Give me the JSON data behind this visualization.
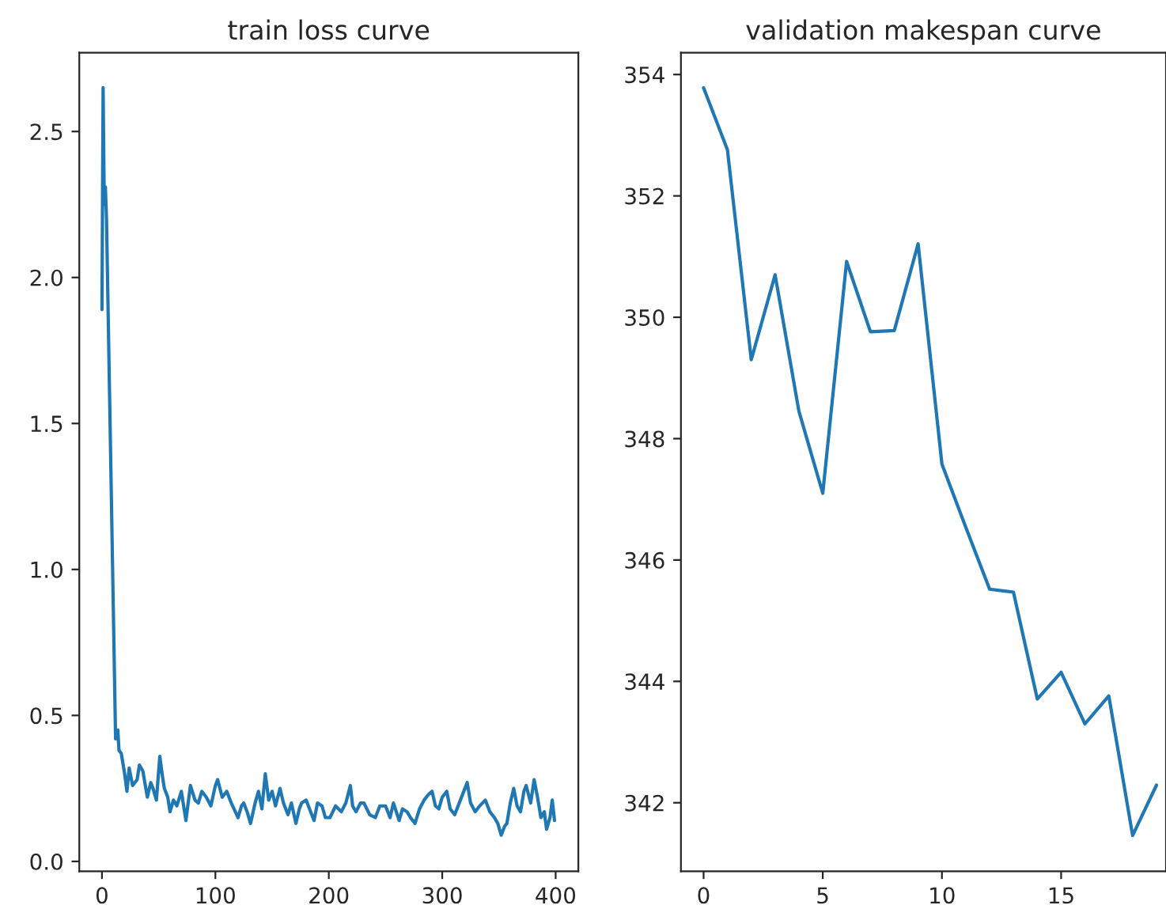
{
  "chart_data": [
    {
      "type": "line",
      "title": "train loss curve",
      "xlim": [
        -20,
        420
      ],
      "ylim": [
        -0.034,
        2.77
      ],
      "xticks": [
        0,
        100,
        200,
        300,
        400
      ],
      "yticks": [
        {
          "value": 0,
          "label": "0.0"
        },
        0.5,
        {
          "value": 1,
          "label": "1.0"
        },
        1.5,
        {
          "value": 2,
          "label": "2.0"
        },
        2.5
      ],
      "grid": false,
      "series": [
        {
          "color": "#1f77b4",
          "x": [
            0,
            1,
            2,
            3,
            4,
            12,
            14,
            15,
            17,
            20,
            22,
            24,
            27,
            31,
            33,
            36,
            40,
            43,
            45,
            48,
            51,
            53,
            55,
            58,
            60,
            63,
            66,
            70,
            74,
            76,
            78,
            82,
            85,
            88,
            92,
            96,
            100,
            102,
            106,
            110,
            114,
            120,
            123,
            125,
            128,
            131,
            135,
            138,
            141,
            144,
            147,
            150,
            153,
            157,
            160,
            164,
            167,
            171,
            174,
            176,
            180,
            184,
            187,
            190,
            194,
            197,
            201,
            206,
            211,
            215,
            219,
            221,
            224,
            228,
            231,
            236,
            241,
            245,
            250,
            254,
            257,
            262,
            265,
            269,
            272,
            276,
            280,
            284,
            288,
            291,
            294,
            297,
            300,
            304,
            307,
            311,
            316,
            322,
            325,
            329,
            333,
            338,
            342,
            346,
            349,
            352,
            355,
            357,
            360,
            363,
            366,
            369,
            372,
            374,
            378,
            381,
            384,
            387,
            390,
            392,
            395,
            397,
            399
          ],
          "values": [
            1.89,
            2.65,
            2.25,
            2.31,
            2.2,
            0.42,
            0.45,
            0.38,
            0.37,
            0.3,
            0.24,
            0.32,
            0.26,
            0.28,
            0.33,
            0.31,
            0.22,
            0.27,
            0.25,
            0.21,
            0.36,
            0.3,
            0.25,
            0.22,
            0.17,
            0.21,
            0.19,
            0.24,
            0.14,
            0.2,
            0.26,
            0.21,
            0.2,
            0.24,
            0.22,
            0.19,
            0.26,
            0.28,
            0.22,
            0.24,
            0.2,
            0.15,
            0.19,
            0.2,
            0.17,
            0.13,
            0.2,
            0.24,
            0.18,
            0.3,
            0.21,
            0.24,
            0.19,
            0.25,
            0.2,
            0.16,
            0.2,
            0.13,
            0.18,
            0.2,
            0.21,
            0.17,
            0.14,
            0.2,
            0.19,
            0.15,
            0.15,
            0.19,
            0.17,
            0.2,
            0.26,
            0.19,
            0.17,
            0.2,
            0.2,
            0.16,
            0.15,
            0.19,
            0.19,
            0.15,
            0.2,
            0.14,
            0.18,
            0.17,
            0.15,
            0.13,
            0.18,
            0.21,
            0.23,
            0.24,
            0.19,
            0.18,
            0.22,
            0.24,
            0.18,
            0.16,
            0.21,
            0.27,
            0.2,
            0.17,
            0.19,
            0.21,
            0.17,
            0.15,
            0.13,
            0.09,
            0.12,
            0.13,
            0.2,
            0.25,
            0.19,
            0.17,
            0.24,
            0.26,
            0.2,
            0.28,
            0.22,
            0.15,
            0.17,
            0.11,
            0.15,
            0.21,
            0.14
          ]
        }
      ]
    },
    {
      "type": "line",
      "title": "validation makespan curve",
      "xlim": [
        -0.95,
        19.4
      ],
      "ylim": [
        340.87,
        354.36
      ],
      "xticks": [
        0,
        5,
        10,
        15
      ],
      "yticks": [
        342,
        344,
        346,
        348,
        350,
        352,
        354
      ],
      "grid": false,
      "series": [
        {
          "color": "#1f77b4",
          "x": [
            0,
            1,
            2,
            3,
            4,
            5,
            6,
            7,
            8,
            9,
            10,
            11,
            12,
            13,
            14,
            15,
            16,
            17,
            18,
            19
          ],
          "values": [
            353.78,
            352.76,
            349.3,
            350.7,
            348.45,
            347.1,
            350.92,
            349.76,
            349.78,
            351.21,
            347.58,
            346.54,
            345.52,
            345.47,
            343.71,
            344.15,
            343.3,
            343.76,
            341.46,
            342.29
          ]
        }
      ]
    }
  ]
}
